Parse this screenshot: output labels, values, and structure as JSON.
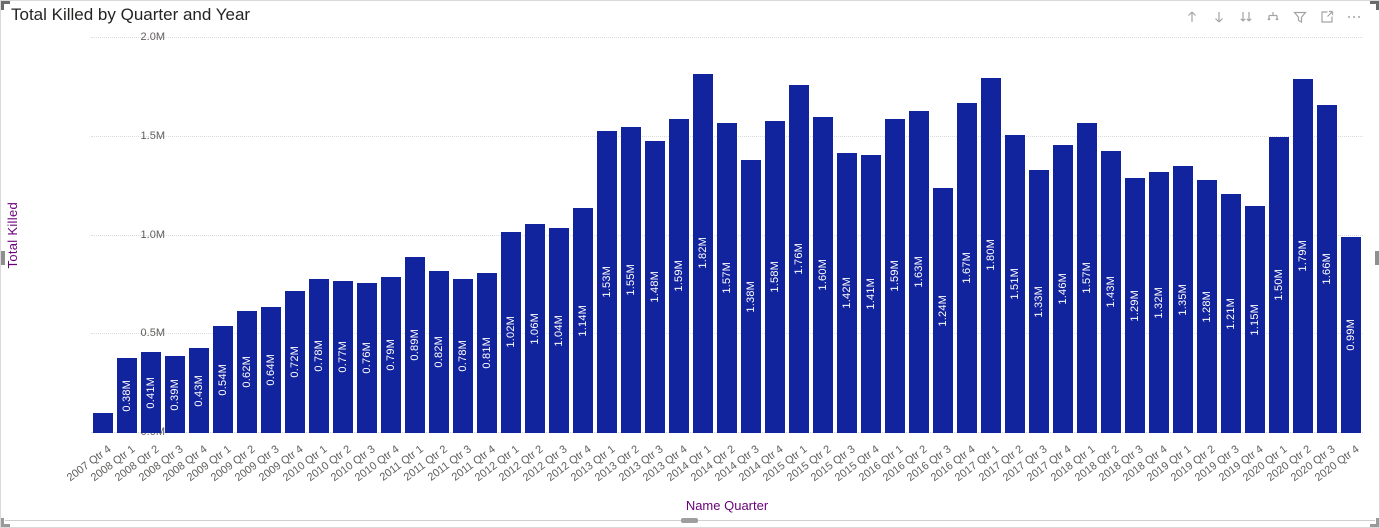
{
  "title": "Total Killed by Quarter and Year",
  "header_icons": [
    {
      "name": "drill-up-icon"
    },
    {
      "name": "drill-down-icon"
    },
    {
      "name": "expand-next-level-icon"
    },
    {
      "name": "expand-all-levels-icon"
    },
    {
      "name": "filter-icon"
    },
    {
      "name": "focus-mode-icon"
    },
    {
      "name": "more-options-icon"
    }
  ],
  "y_axis": {
    "title": "Total Killed",
    "ticks": [
      "0.0M",
      "0.5M",
      "1.0M",
      "1.5M",
      "2.0M"
    ]
  },
  "x_axis": {
    "title": "Name Quarter"
  },
  "colors": {
    "bar": "#12239E",
    "bar_label": "#ffffff",
    "axis_title": "#6B007B",
    "tick_label": "#605e5c",
    "title_text": "#252423",
    "gridline": "#dcdcdc"
  },
  "chart_data": {
    "type": "bar",
    "title": "Total Killed by Quarter and Year",
    "xlabel": "Name Quarter",
    "ylabel": "Total Killed",
    "unit": "M",
    "ylim": [
      0,
      2.0
    ],
    "grid": "dotted-horizontal",
    "legend": "none",
    "bar_color": "#12239E",
    "categories": [
      "2007 Qtr 4",
      "2008 Qtr 1",
      "2008 Qtr 2",
      "2008 Qtr 3",
      "2008 Qtr 4",
      "2009 Qtr 1",
      "2009 Qtr 2",
      "2009 Qtr 3",
      "2009 Qtr 4",
      "2010 Qtr 1",
      "2010 Qtr 2",
      "2010 Qtr 3",
      "2010 Qtr 4",
      "2011 Qtr 1",
      "2011 Qtr 2",
      "2011 Qtr 3",
      "2011 Qtr 4",
      "2012 Qtr 1",
      "2012 Qtr 2",
      "2012 Qtr 3",
      "2012 Qtr 4",
      "2013 Qtr 1",
      "2013 Qtr 2",
      "2013 Qtr 3",
      "2013 Qtr 4",
      "2014 Qtr 1",
      "2014 Qtr 2",
      "2014 Qtr 3",
      "2014 Qtr 4",
      "2015 Qtr 1",
      "2015 Qtr 2",
      "2015 Qtr 3",
      "2015 Qtr 4",
      "2016 Qtr 1",
      "2016 Qtr 2",
      "2016 Qtr 3",
      "2016 Qtr 4",
      "2017 Qtr 1",
      "2017 Qtr 2",
      "2017 Qtr 3",
      "2017 Qtr 4",
      "2018 Qtr 1",
      "2018 Qtr 2",
      "2018 Qtr 3",
      "2018 Qtr 4",
      "2019 Qtr 1",
      "2019 Qtr 2",
      "2019 Qtr 3",
      "2019 Qtr 4",
      "2020 Qtr 1",
      "2020 Qtr 2",
      "2020 Qtr 3",
      "2020 Qtr 4"
    ],
    "values": [
      0.1,
      0.38,
      0.41,
      0.39,
      0.43,
      0.54,
      0.62,
      0.64,
      0.72,
      0.78,
      0.77,
      0.76,
      0.79,
      0.89,
      0.82,
      0.78,
      0.81,
      1.02,
      1.06,
      1.04,
      1.14,
      1.53,
      1.55,
      1.48,
      1.59,
      1.82,
      1.57,
      1.38,
      1.58,
      1.76,
      1.6,
      1.42,
      1.41,
      1.59,
      1.63,
      1.24,
      1.67,
      1.8,
      1.51,
      1.33,
      1.46,
      1.57,
      1.43,
      1.29,
      1.32,
      1.35,
      1.28,
      1.21,
      1.15,
      1.5,
      1.79,
      1.66,
      0.99
    ],
    "labels": [
      "",
      "0.38M",
      "0.41M",
      "0.39M",
      "0.43M",
      "0.54M",
      "0.62M",
      "0.64M",
      "0.72M",
      "0.78M",
      "0.77M",
      "0.76M",
      "0.79M",
      "0.89M",
      "0.82M",
      "0.78M",
      "0.81M",
      "1.02M",
      "1.06M",
      "1.04M",
      "1.14M",
      "1.53M",
      "1.55M",
      "1.48M",
      "1.59M",
      "1.82M",
      "1.57M",
      "1.38M",
      "1.58M",
      "1.76M",
      "1.60M",
      "1.42M",
      "1.41M",
      "1.59M",
      "1.63M",
      "1.24M",
      "1.67M",
      "1.80M",
      "1.51M",
      "1.33M",
      "1.46M",
      "1.57M",
      "1.43M",
      "1.29M",
      "1.32M",
      "1.35M",
      "1.28M",
      "1.21M",
      "1.15M",
      "1.50M",
      "1.79M",
      "1.66M",
      "0.99M"
    ]
  }
}
